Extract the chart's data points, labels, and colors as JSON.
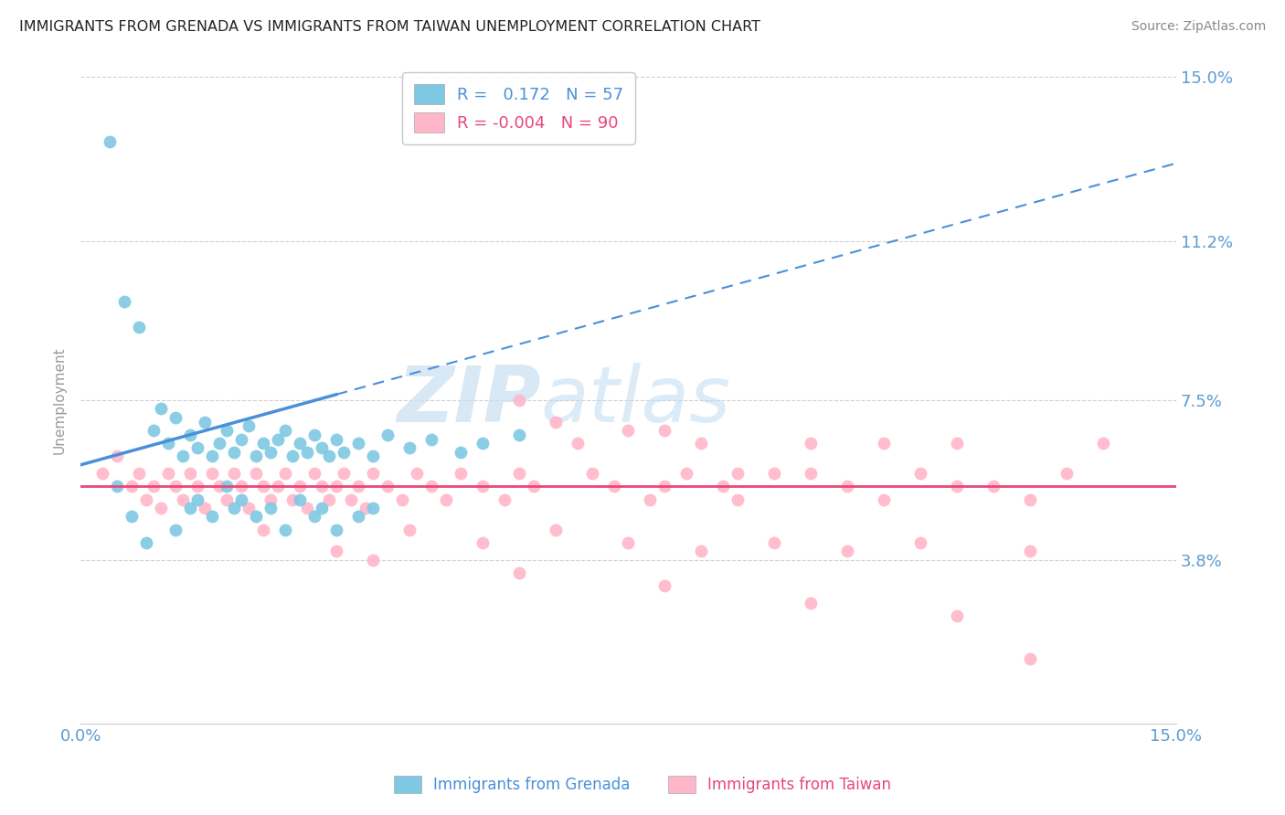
{
  "title": "IMMIGRANTS FROM GRENADA VS IMMIGRANTS FROM TAIWAN UNEMPLOYMENT CORRELATION CHART",
  "source": "Source: ZipAtlas.com",
  "ylabel": "Unemployment",
  "xlim": [
    0,
    0.15
  ],
  "ylim": [
    0,
    0.15
  ],
  "yticks": [
    0.038,
    0.075,
    0.112,
    0.15
  ],
  "ytick_labels": [
    "3.8%",
    "7.5%",
    "11.2%",
    "15.0%"
  ],
  "series1_name": "Immigrants from Grenada",
  "series1_color": "#7ec8e3",
  "series1_R": 0.172,
  "series1_N": 57,
  "series2_name": "Immigrants from Taiwan",
  "series2_color": "#ffb6c8",
  "series2_R": -0.004,
  "series2_N": 90,
  "trend1_color": "#4a90d9",
  "trend2_color": "#e8487a",
  "background_color": "#ffffff",
  "grid_color": "#d0d0d0",
  "title_color": "#333333",
  "axis_label_color": "#5b9bd5",
  "watermark_color": "#c8dff0",
  "series1_x": [
    0.004,
    0.006,
    0.008,
    0.01,
    0.011,
    0.012,
    0.013,
    0.014,
    0.015,
    0.016,
    0.017,
    0.018,
    0.019,
    0.02,
    0.021,
    0.022,
    0.023,
    0.024,
    0.025,
    0.026,
    0.027,
    0.028,
    0.029,
    0.03,
    0.031,
    0.032,
    0.033,
    0.034,
    0.035,
    0.036,
    0.038,
    0.04,
    0.042,
    0.045,
    0.048,
    0.052,
    0.055,
    0.06,
    0.005,
    0.007,
    0.009,
    0.013,
    0.015,
    0.016,
    0.018,
    0.02,
    0.021,
    0.022,
    0.024,
    0.026,
    0.028,
    0.03,
    0.032,
    0.033,
    0.035,
    0.038,
    0.04
  ],
  "series1_y": [
    0.135,
    0.098,
    0.092,
    0.068,
    0.073,
    0.065,
    0.071,
    0.062,
    0.067,
    0.064,
    0.07,
    0.062,
    0.065,
    0.068,
    0.063,
    0.066,
    0.069,
    0.062,
    0.065,
    0.063,
    0.066,
    0.068,
    0.062,
    0.065,
    0.063,
    0.067,
    0.064,
    0.062,
    0.066,
    0.063,
    0.065,
    0.062,
    0.067,
    0.064,
    0.066,
    0.063,
    0.065,
    0.067,
    0.055,
    0.048,
    0.042,
    0.045,
    0.05,
    0.052,
    0.048,
    0.055,
    0.05,
    0.052,
    0.048,
    0.05,
    0.045,
    0.052,
    0.048,
    0.05,
    0.045,
    0.048,
    0.05
  ],
  "series2_x": [
    0.003,
    0.005,
    0.007,
    0.008,
    0.009,
    0.01,
    0.011,
    0.012,
    0.013,
    0.014,
    0.015,
    0.016,
    0.017,
    0.018,
    0.019,
    0.02,
    0.021,
    0.022,
    0.023,
    0.024,
    0.025,
    0.026,
    0.027,
    0.028,
    0.029,
    0.03,
    0.031,
    0.032,
    0.033,
    0.034,
    0.035,
    0.036,
    0.037,
    0.038,
    0.039,
    0.04,
    0.042,
    0.044,
    0.046,
    0.048,
    0.05,
    0.052,
    0.055,
    0.058,
    0.06,
    0.062,
    0.065,
    0.068,
    0.07,
    0.073,
    0.075,
    0.078,
    0.08,
    0.083,
    0.085,
    0.088,
    0.09,
    0.095,
    0.1,
    0.105,
    0.11,
    0.115,
    0.12,
    0.125,
    0.13,
    0.135,
    0.14,
    0.025,
    0.035,
    0.045,
    0.055,
    0.065,
    0.075,
    0.085,
    0.095,
    0.105,
    0.115,
    0.13,
    0.04,
    0.06,
    0.08,
    0.1,
    0.12,
    0.09,
    0.11,
    0.13,
    0.06,
    0.08,
    0.1,
    0.12
  ],
  "series2_y": [
    0.058,
    0.062,
    0.055,
    0.058,
    0.052,
    0.055,
    0.05,
    0.058,
    0.055,
    0.052,
    0.058,
    0.055,
    0.05,
    0.058,
    0.055,
    0.052,
    0.058,
    0.055,
    0.05,
    0.058,
    0.055,
    0.052,
    0.055,
    0.058,
    0.052,
    0.055,
    0.05,
    0.058,
    0.055,
    0.052,
    0.055,
    0.058,
    0.052,
    0.055,
    0.05,
    0.058,
    0.055,
    0.052,
    0.058,
    0.055,
    0.052,
    0.058,
    0.055,
    0.052,
    0.058,
    0.055,
    0.07,
    0.065,
    0.058,
    0.055,
    0.068,
    0.052,
    0.055,
    0.058,
    0.065,
    0.055,
    0.052,
    0.058,
    0.065,
    0.055,
    0.052,
    0.058,
    0.065,
    0.055,
    0.052,
    0.058,
    0.065,
    0.045,
    0.04,
    0.045,
    0.042,
    0.045,
    0.042,
    0.04,
    0.042,
    0.04,
    0.042,
    0.04,
    0.038,
    0.035,
    0.032,
    0.028,
    0.025,
    0.058,
    0.065,
    0.015,
    0.075,
    0.068,
    0.058,
    0.055
  ]
}
